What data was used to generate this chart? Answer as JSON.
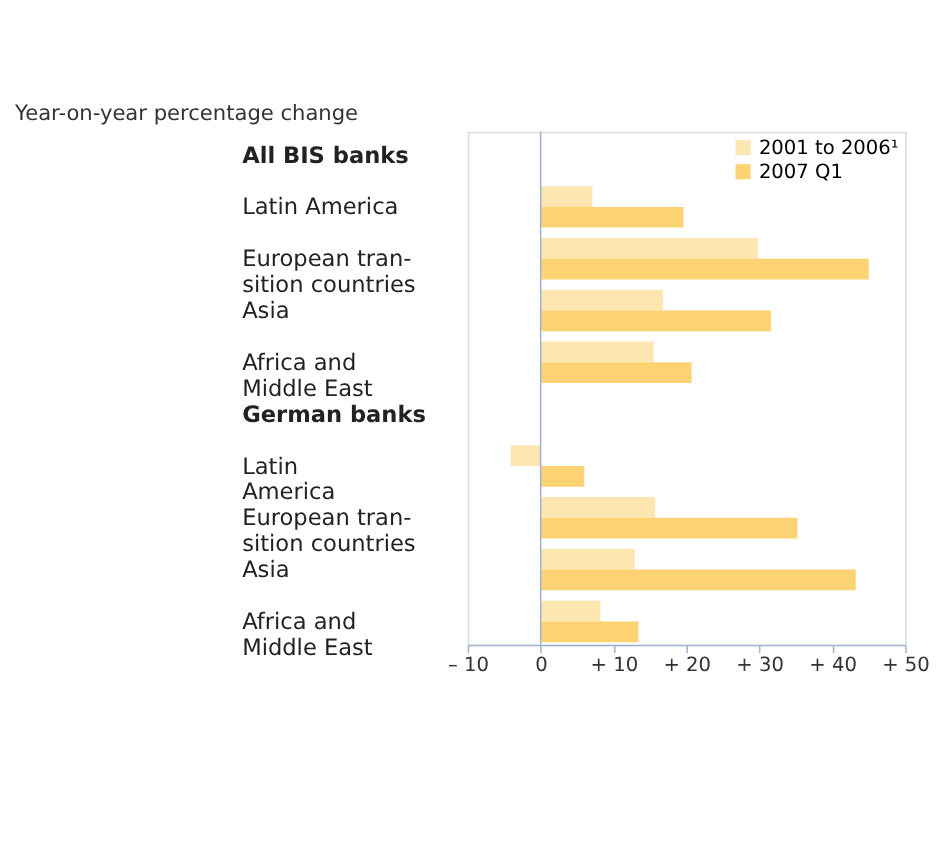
{
  "chart_data": {
    "type": "bar",
    "orientation": "horizontal",
    "title": "Year-on-year percentage change",
    "annotations": [
      "All BIS banks",
      "German banks"
    ],
    "categories": [
      "Latin America",
      "European tran-\nsition countries",
      "Asia",
      "Africa and\nMiddle East",
      "Latin\nAmerica",
      "European tran-\nsition countries",
      "Asia",
      "Africa and\nMiddle East"
    ],
    "series": [
      {
        "name": "2001 to 2006¹",
        "color": "#fde6b0",
        "values": [
          7.1,
          29.8,
          16.8,
          15.5,
          -4.1,
          15.7,
          12.9,
          8.2
        ]
      },
      {
        "name": "2007 Q1",
        "color": "#fdd272",
        "values": [
          19.6,
          45,
          31.6,
          20.7,
          6,
          35.2,
          43.2,
          13.4
        ]
      }
    ],
    "xlim": [
      -10,
      50
    ],
    "xticks": [
      {
        "value": -10,
        "label": "– 10"
      },
      0,
      {
        "value": 10,
        "label": "+ 10"
      },
      {
        "value": 20,
        "label": "+ 20"
      },
      {
        "value": 30,
        "label": "+ 30"
      },
      {
        "value": 40,
        "label": "+ 40"
      },
      {
        "value": 50,
        "label": "+ 50"
      }
    ],
    "ref_lines": [
      {
        "axis": "x",
        "value": 0,
        "color": "#9fb3d6"
      }
    ],
    "legend": "top right"
  }
}
